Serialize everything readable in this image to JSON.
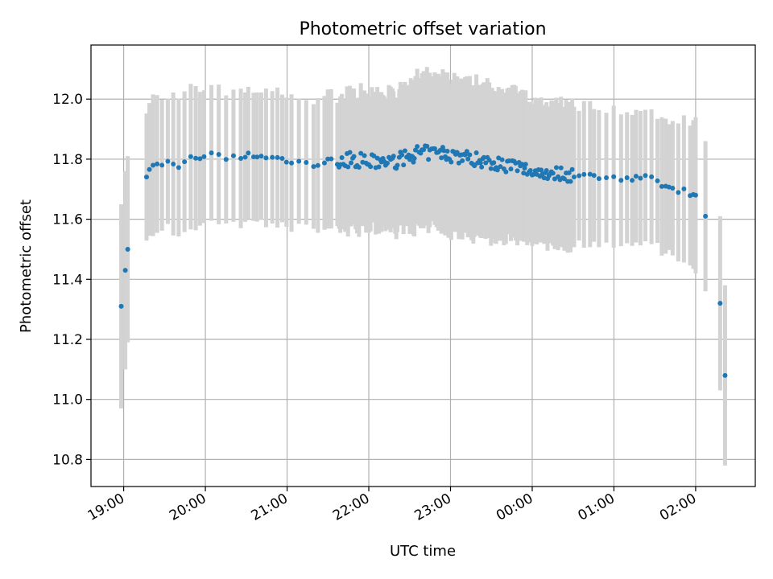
{
  "chart_data": {
    "type": "scatter",
    "title": "Photometric offset variation",
    "xlabel": "UTC time",
    "ylabel": "Photometric offset",
    "x_unit": "hours after 19:00 UTC",
    "xlim": [
      -0.4,
      7.73
    ],
    "ylim": [
      10.71,
      12.18
    ],
    "x_ticks": [
      {
        "value": 0,
        "label": "19:00"
      },
      {
        "value": 1,
        "label": "20:00"
      },
      {
        "value": 2,
        "label": "21:00"
      },
      {
        "value": 3,
        "label": "22:00"
      },
      {
        "value": 4,
        "label": "23:00"
      },
      {
        "value": 5,
        "label": "00:00"
      },
      {
        "value": 6,
        "label": "01:00"
      },
      {
        "value": 7,
        "label": "02:00"
      }
    ],
    "y_ticks": [
      {
        "value": 10.8,
        "label": "10.8"
      },
      {
        "value": 11.0,
        "label": "11.0"
      },
      {
        "value": 11.2,
        "label": "11.2"
      },
      {
        "value": 11.4,
        "label": "11.4"
      },
      {
        "value": 11.6,
        "label": "11.6"
      },
      {
        "value": 11.8,
        "label": "11.8"
      },
      {
        "value": 12.0,
        "label": "12.0"
      }
    ],
    "grid": true,
    "point_color": "#1f77b4",
    "errorbar_color": "#d3d3d3",
    "anchors": [
      [
        -0.03,
        11.31,
        0.34
      ],
      [
        0.02,
        11.43,
        0.33
      ],
      [
        0.05,
        11.5,
        0.31
      ],
      [
        0.3,
        11.75,
        0.21
      ],
      [
        0.33,
        11.77,
        0.23
      ],
      [
        0.5,
        11.79,
        0.22
      ],
      [
        0.7,
        11.78,
        0.23
      ],
      [
        0.9,
        11.81,
        0.23
      ],
      [
        1.2,
        11.81,
        0.22
      ],
      [
        1.6,
        11.81,
        0.22
      ],
      [
        1.9,
        11.8,
        0.22
      ],
      [
        2.2,
        11.78,
        0.22
      ],
      [
        2.5,
        11.79,
        0.22
      ],
      [
        2.8,
        11.8,
        0.22
      ],
      [
        3.0,
        11.79,
        0.22
      ],
      [
        3.3,
        11.79,
        0.23
      ],
      [
        3.6,
        11.82,
        0.25
      ],
      [
        3.9,
        11.82,
        0.25
      ],
      [
        4.3,
        11.8,
        0.25
      ],
      [
        4.7,
        11.78,
        0.25
      ],
      [
        5.0,
        11.76,
        0.23
      ],
      [
        5.4,
        11.75,
        0.23
      ],
      [
        5.9,
        11.74,
        0.23
      ],
      [
        6.3,
        11.74,
        0.22
      ],
      [
        6.6,
        11.72,
        0.22
      ],
      [
        6.8,
        11.7,
        0.22
      ],
      [
        7.0,
        11.68,
        0.26
      ],
      [
        7.12,
        11.61,
        0.25
      ],
      [
        7.3,
        11.32,
        0.29
      ],
      [
        7.36,
        11.08,
        0.3
      ]
    ]
  }
}
